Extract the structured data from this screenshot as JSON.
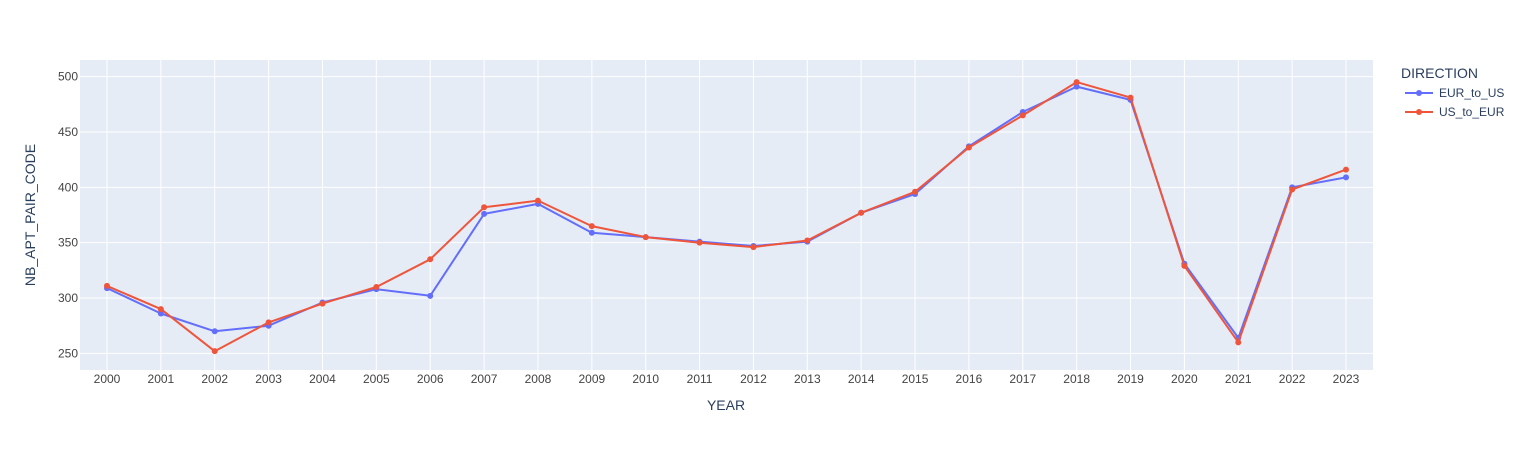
{
  "chart_data": {
    "type": "line",
    "xlabel": "YEAR",
    "ylabel": "NB_APT_PAIR_CODE",
    "x": [
      "2000",
      "2001",
      "2002",
      "2003",
      "2004",
      "2005",
      "2006",
      "2007",
      "2008",
      "2009",
      "2010",
      "2011",
      "2012",
      "2013",
      "2014",
      "2015",
      "2016",
      "2017",
      "2018",
      "2019",
      "2020",
      "2021",
      "2022",
      "2023"
    ],
    "yticks": [
      250,
      300,
      350,
      400,
      450,
      500
    ],
    "ylim": [
      235,
      515
    ],
    "grid": true,
    "legend": {
      "title": "DIRECTION",
      "placement": "right"
    },
    "series": [
      {
        "name": "EUR_to_US",
        "color": "#636efa",
        "values": [
          309,
          286,
          270,
          275,
          296,
          308,
          302,
          376,
          385,
          359,
          355,
          351,
          347,
          351,
          377,
          394,
          437,
          468,
          491,
          479,
          331,
          264,
          400,
          409
        ]
      },
      {
        "name": "US_to_EUR",
        "color": "#ef553b",
        "values": [
          311,
          290,
          252,
          278,
          295,
          310,
          335,
          382,
          388,
          365,
          355,
          350,
          346,
          352,
          377,
          396,
          436,
          465,
          495,
          481,
          329,
          260,
          398,
          416
        ]
      }
    ]
  },
  "style": {
    "plot_bg": "#e5ecf6",
    "grid_color": "#ffffff",
    "text_color": "#2a3f5f",
    "tick_color": "#444444"
  }
}
